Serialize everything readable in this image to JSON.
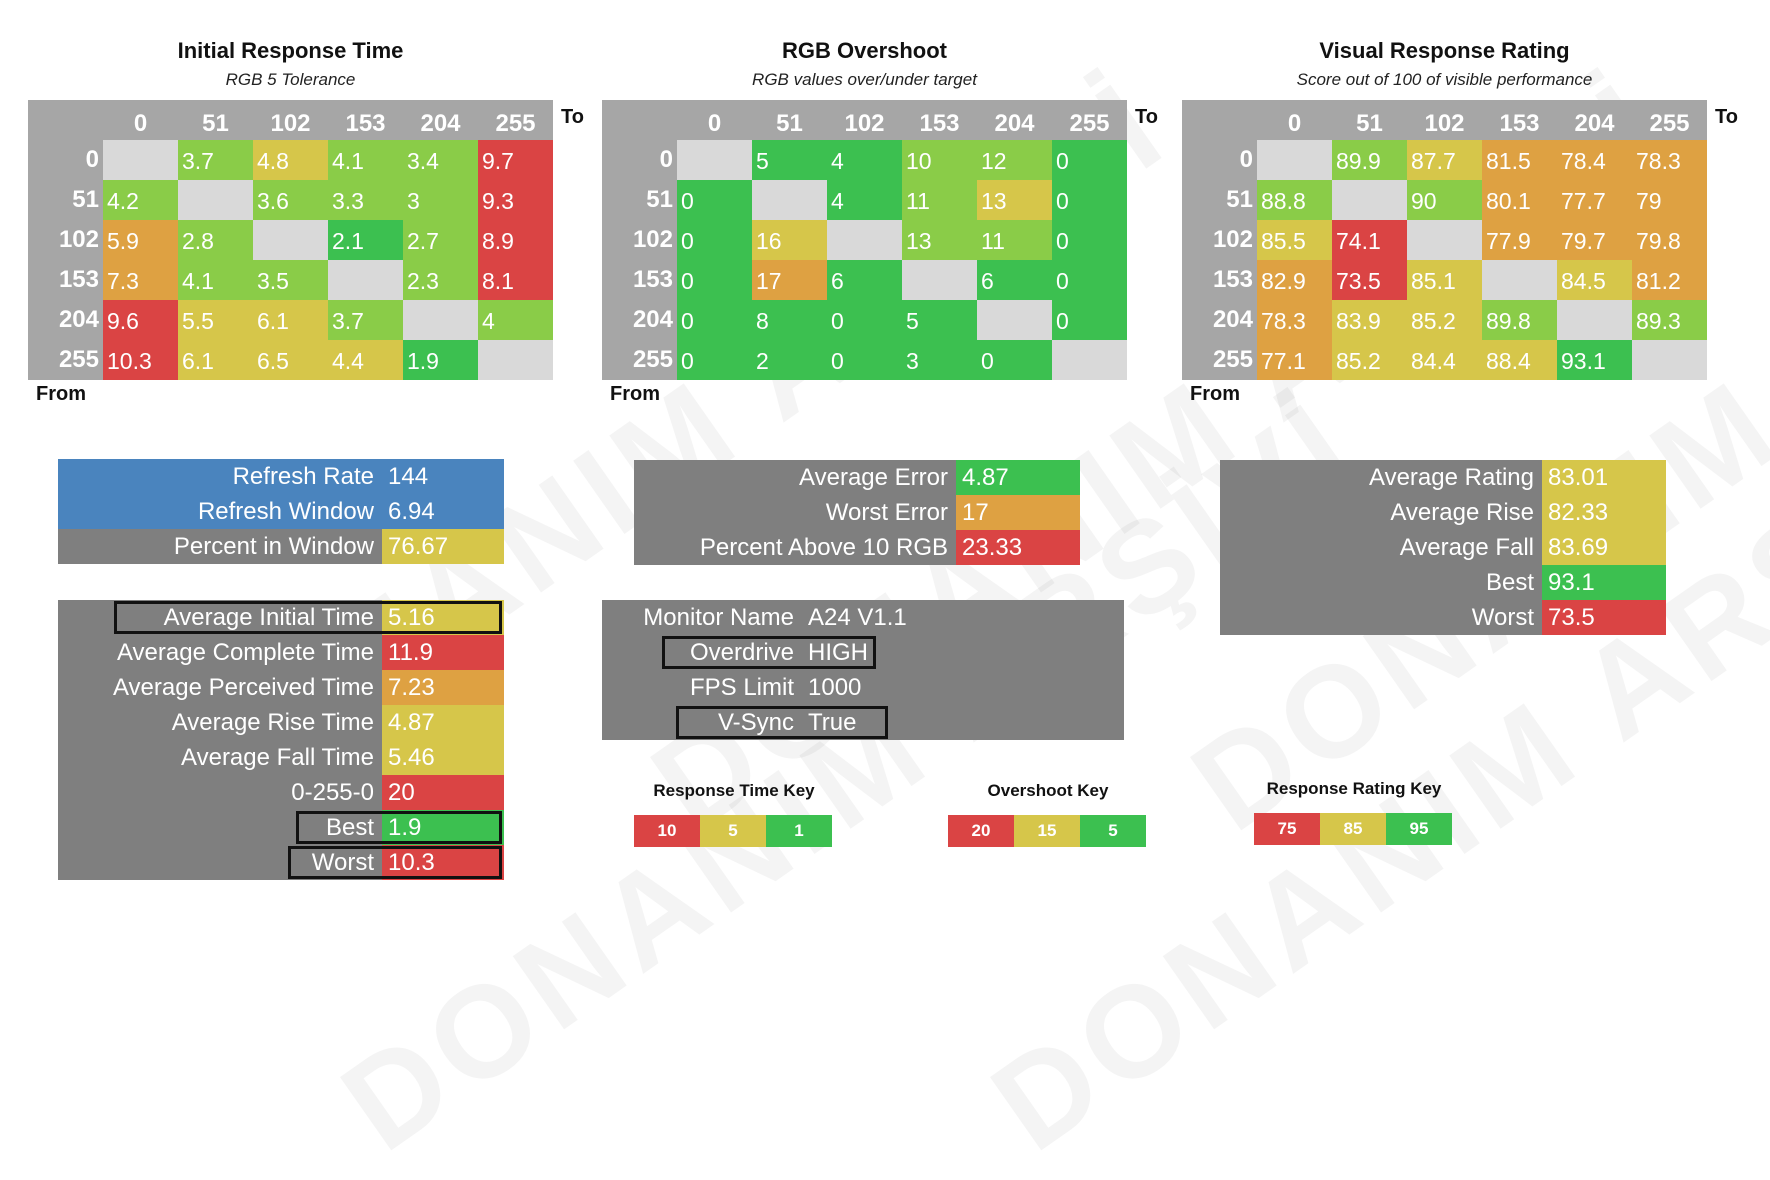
{
  "colors": {
    "best": "#3cc050",
    "good": "#8acc48",
    "mid": "#d6c64a",
    "warm": "#dea142",
    "bad": "#da4444",
    "blue": "#4a84be",
    "panel_gray": "#7f7f7f",
    "matrix_gray": "#a6a6a6",
    "diag": "#d9d9d9"
  },
  "axis": {
    "to_label": "To",
    "from_label": "From",
    "levels": [
      "0",
      "51",
      "102",
      "153",
      "204",
      "255"
    ]
  },
  "chart_data": [
    {
      "type": "heatmap",
      "title": "Initial Response Time",
      "subtitle": "RGB 5 Tolerance",
      "xlabel": "To",
      "ylabel": "From",
      "categories": [
        "0",
        "51",
        "102",
        "153",
        "204",
        "255"
      ],
      "rows": [
        [
          "",
          "3.7",
          "4.8",
          "4.1",
          "3.4",
          "9.7"
        ],
        [
          "4.2",
          "",
          "3.6",
          "3.3",
          "3",
          "9.3"
        ],
        [
          "5.9",
          "2.8",
          "",
          "2.1",
          "2.7",
          "8.9"
        ],
        [
          "7.3",
          "4.1",
          "3.5",
          "",
          "2.3",
          "8.1"
        ],
        [
          "9.6",
          "5.5",
          "6.1",
          "3.7",
          "",
          "4"
        ],
        [
          "10.3",
          "6.1",
          "6.5",
          "4.4",
          "1.9",
          ""
        ]
      ],
      "cell_colors": [
        [
          "diag",
          "good",
          "mid",
          "good",
          "good",
          "bad"
        ],
        [
          "good",
          "diag",
          "good",
          "good",
          "good",
          "bad"
        ],
        [
          "warm",
          "good",
          "diag",
          "best",
          "good",
          "bad"
        ],
        [
          "warm",
          "good",
          "good",
          "diag",
          "good",
          "bad"
        ],
        [
          "bad",
          "mid",
          "mid",
          "good",
          "diag",
          "good"
        ],
        [
          "bad",
          "mid",
          "mid",
          "mid",
          "best",
          "diag"
        ]
      ]
    },
    {
      "type": "heatmap",
      "title": "RGB Overshoot",
      "subtitle": "RGB values over/under target",
      "xlabel": "To",
      "ylabel": "From",
      "categories": [
        "0",
        "51",
        "102",
        "153",
        "204",
        "255"
      ],
      "rows": [
        [
          "",
          "5",
          "4",
          "10",
          "12",
          "0"
        ],
        [
          "0",
          "",
          "4",
          "11",
          "13",
          "0"
        ],
        [
          "0",
          "16",
          "",
          "13",
          "11",
          "0"
        ],
        [
          "0",
          "17",
          "6",
          "",
          "6",
          "0"
        ],
        [
          "0",
          "8",
          "0",
          "5",
          "",
          "0"
        ],
        [
          "0",
          "2",
          "0",
          "3",
          "0",
          ""
        ]
      ],
      "cell_colors": [
        [
          "diag",
          "best",
          "best",
          "good",
          "good",
          "best"
        ],
        [
          "best",
          "diag",
          "best",
          "good",
          "mid",
          "best"
        ],
        [
          "best",
          "mid",
          "diag",
          "good",
          "good",
          "best"
        ],
        [
          "best",
          "warm",
          "best",
          "diag",
          "best",
          "best"
        ],
        [
          "best",
          "best",
          "best",
          "best",
          "diag",
          "best"
        ],
        [
          "best",
          "best",
          "best",
          "best",
          "best",
          "diag"
        ]
      ]
    },
    {
      "type": "heatmap",
      "title": "Visual Response Rating",
      "subtitle": "Score out of 100 of visible performance",
      "xlabel": "To",
      "ylabel": "From",
      "categories": [
        "0",
        "51",
        "102",
        "153",
        "204",
        "255"
      ],
      "rows": [
        [
          "",
          "89.9",
          "87.7",
          "81.5",
          "78.4",
          "78.3"
        ],
        [
          "88.8",
          "",
          "90",
          "80.1",
          "77.7",
          "79"
        ],
        [
          "85.5",
          "74.1",
          "",
          "77.9",
          "79.7",
          "79.8"
        ],
        [
          "82.9",
          "73.5",
          "85.1",
          "",
          "84.5",
          "81.2"
        ],
        [
          "78.3",
          "83.9",
          "85.2",
          "89.8",
          "",
          "89.3"
        ],
        [
          "77.1",
          "85.2",
          "84.4",
          "88.4",
          "93.1",
          ""
        ]
      ],
      "cell_colors": [
        [
          "diag",
          "good",
          "mid",
          "warm",
          "warm",
          "warm"
        ],
        [
          "good",
          "diag",
          "good",
          "warm",
          "warm",
          "warm"
        ],
        [
          "mid",
          "bad",
          "diag",
          "warm",
          "warm",
          "warm"
        ],
        [
          "warm",
          "bad",
          "mid",
          "diag",
          "mid",
          "warm"
        ],
        [
          "warm",
          "mid",
          "mid",
          "good",
          "diag",
          "good"
        ],
        [
          "warm",
          "mid",
          "mid",
          "mid",
          "best",
          "diag"
        ]
      ]
    }
  ],
  "refresh_panel": [
    {
      "label": "Refresh Rate",
      "value": "144",
      "bg": "blue",
      "vbg": "blue"
    },
    {
      "label": "Refresh Window",
      "value": "6.94",
      "bg": "blue",
      "vbg": "blue"
    },
    {
      "label": "Percent in Window",
      "value": "76.67",
      "bg": "panel_gray",
      "vbg": "mid"
    }
  ],
  "response_stats": [
    {
      "label": "Average Initial Time",
      "value": "5.16",
      "vbg": "mid",
      "highlight": true
    },
    {
      "label": "Average Complete Time",
      "value": "11.9",
      "vbg": "bad",
      "highlight": false
    },
    {
      "label": "Average Perceived Time",
      "value": "7.23",
      "vbg": "warm",
      "highlight": false
    },
    {
      "label": "Average Rise Time",
      "value": "4.87",
      "vbg": "mid",
      "highlight": false
    },
    {
      "label": "Average Fall Time",
      "value": "5.46",
      "vbg": "mid",
      "highlight": false
    },
    {
      "label": "0-255-0",
      "value": "20",
      "vbg": "bad",
      "highlight": false
    },
    {
      "label": "Best",
      "value": "1.9",
      "vbg": "best",
      "highlight": true
    },
    {
      "label": "Worst",
      "value": "10.3",
      "vbg": "bad",
      "highlight": true
    }
  ],
  "overshoot_stats": [
    {
      "label": "Average Error",
      "value": "4.87",
      "vbg": "best"
    },
    {
      "label": "Worst Error",
      "value": "17",
      "vbg": "warm"
    },
    {
      "label": "Percent Above 10 RGB",
      "value": "23.33",
      "vbg": "bad"
    }
  ],
  "monitor_info": [
    {
      "label": "Monitor Name",
      "value": "A24 V1.1",
      "highlight": false
    },
    {
      "label": "Overdrive",
      "value": "HIGH",
      "highlight": true
    },
    {
      "label": "FPS Limit",
      "value": "1000",
      "highlight": false
    },
    {
      "label": "V-Sync",
      "value": "True",
      "highlight": true
    }
  ],
  "rating_stats": [
    {
      "label": "Average Rating",
      "value": "83.01",
      "vbg": "mid"
    },
    {
      "label": "Average Rise",
      "value": "82.33",
      "vbg": "mid"
    },
    {
      "label": "Average Fall",
      "value": "83.69",
      "vbg": "mid"
    },
    {
      "label": "Best",
      "value": "93.1",
      "vbg": "best"
    },
    {
      "label": "Worst",
      "value": "73.5",
      "vbg": "bad"
    }
  ],
  "keys": [
    {
      "title": "Response Time Key",
      "items": [
        {
          "text": "10",
          "c": "bad"
        },
        {
          "text": "5",
          "c": "mid"
        },
        {
          "text": "1",
          "c": "best"
        }
      ]
    },
    {
      "title": "Overshoot Key",
      "items": [
        {
          "text": "20",
          "c": "bad"
        },
        {
          "text": "15",
          "c": "mid"
        },
        {
          "text": "5",
          "c": "best"
        }
      ]
    },
    {
      "title": "Response Rating Key",
      "items": [
        {
          "text": "75",
          "c": "bad"
        },
        {
          "text": "85",
          "c": "mid"
        },
        {
          "text": "95",
          "c": "best"
        }
      ]
    }
  ]
}
